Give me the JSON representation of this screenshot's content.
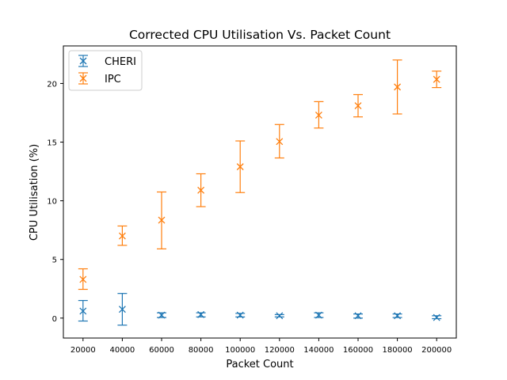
{
  "chart_data": {
    "type": "scatter",
    "title": "Corrected CPU Utilisation Vs. Packet Count",
    "xlabel": "Packet Count",
    "ylabel": "CPU Utilisation (%)",
    "x": [
      20000,
      40000,
      60000,
      80000,
      100000,
      120000,
      140000,
      160000,
      180000,
      200000
    ],
    "x_ticks": [
      "20000",
      "40000",
      "60000",
      "80000",
      "100000",
      "120000",
      "140000",
      "160000",
      "180000",
      "200000"
    ],
    "y_ticks": [
      "0",
      "5",
      "10",
      "15",
      "20"
    ],
    "xlim": [
      10000,
      210000
    ],
    "ylim": [
      -1.7,
      23.2
    ],
    "grid": false,
    "legend_position": "top-left",
    "marker": "x with error bars",
    "series": [
      {
        "name": "CHERI",
        "color": "#1f77b4",
        "values": [
          0.6,
          0.75,
          0.25,
          0.3,
          0.25,
          0.2,
          0.25,
          0.2,
          0.2,
          0.05
        ],
        "err_low": [
          -0.25,
          -0.6,
          0.05,
          0.1,
          0.1,
          0.1,
          0.05,
          0.0,
          0.05,
          -0.05
        ],
        "err_high": [
          1.5,
          2.1,
          0.45,
          0.45,
          0.4,
          0.3,
          0.45,
          0.35,
          0.35,
          0.2
        ]
      },
      {
        "name": "IPC",
        "color": "#ff7f0e",
        "values": [
          3.3,
          7.0,
          8.35,
          10.9,
          12.9,
          15.05,
          17.3,
          18.1,
          19.7,
          20.35
        ],
        "err_low": [
          2.45,
          6.2,
          5.9,
          9.5,
          10.7,
          13.65,
          16.2,
          17.15,
          17.4,
          19.65
        ],
        "err_high": [
          4.2,
          7.85,
          10.75,
          12.3,
          15.1,
          16.5,
          18.45,
          19.05,
          22.0,
          21.05
        ]
      }
    ]
  }
}
